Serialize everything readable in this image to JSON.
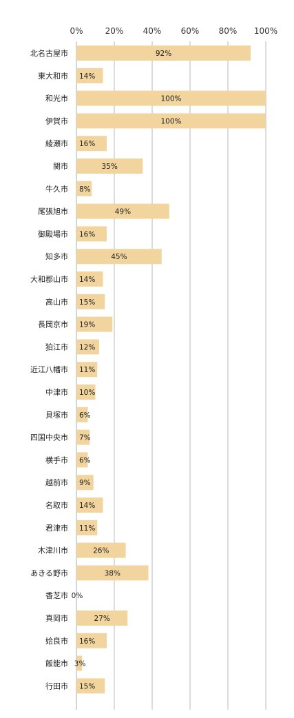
{
  "chart_data": {
    "type": "bar",
    "orientation": "horizontal",
    "title": "",
    "xlabel": "",
    "ylabel": "",
    "xlim": [
      0,
      100
    ],
    "x_ticks": [
      "0%",
      "20%",
      "40%",
      "60%",
      "80%",
      "100%"
    ],
    "grid": true,
    "bar_color": "#f2d59e",
    "categories": [
      "北名古屋市",
      "東大和市",
      "和光市",
      "伊賀市",
      "綾瀬市",
      "関市",
      "牛久市",
      "尾張旭市",
      "御殿場市",
      "知多市",
      "大和郡山市",
      "高山市",
      "長岡京市",
      "狛江市",
      "近江八幡市",
      "中津市",
      "貝塚市",
      "四国中央市",
      "横手市",
      "越前市",
      "名取市",
      "君津市",
      "木津川市",
      "あきる野市",
      "香芝市",
      "真岡市",
      "姶良市",
      "飯能市",
      "行田市"
    ],
    "values": [
      92,
      14,
      100,
      100,
      16,
      35,
      8,
      49,
      16,
      45,
      14,
      15,
      19,
      12,
      11,
      10,
      6,
      7,
      6,
      9,
      14,
      11,
      26,
      38,
      0,
      27,
      16,
      3,
      15
    ],
    "data_labels": [
      "92%",
      "14%",
      "100%",
      "100%",
      "16%",
      "35%",
      "8%",
      "49%",
      "16%",
      "45%",
      "14%",
      "15%",
      "19%",
      "12%",
      "11%",
      "10%",
      "6%",
      "7%",
      "6%",
      "9%",
      "14%",
      "11%",
      "26%",
      "38%",
      "0%",
      "27%",
      "16%",
      "3%",
      "15%"
    ]
  }
}
